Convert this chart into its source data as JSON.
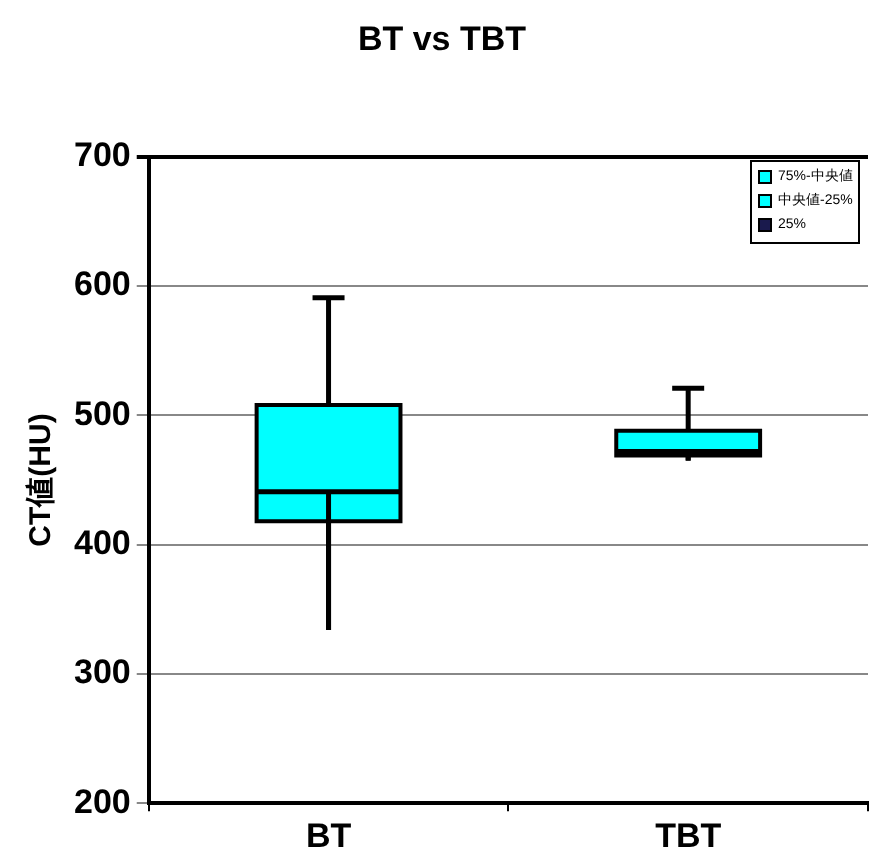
{
  "chart_data": {
    "type": "box",
    "title": "BT vs TBT",
    "ylabel": "CT値(HU)",
    "categories": [
      "BT",
      "TBT"
    ],
    "series": [
      {
        "color": "#00ffff",
        "boxes": [
          {
            "low": 334,
            "q1": 418,
            "median": 441,
            "q3": 508,
            "high": 591
          },
          {
            "low": 465,
            "q1": 469,
            "median": 472,
            "q3": 488,
            "high": 521
          }
        ]
      }
    ],
    "annotations": [
      "75%-中央値",
      "中央値-25%",
      "25%"
    ],
    "ylim": [
      200,
      700
    ],
    "yticks": [
      200,
      300,
      400,
      500,
      600,
      700
    ],
    "grid": "y"
  }
}
